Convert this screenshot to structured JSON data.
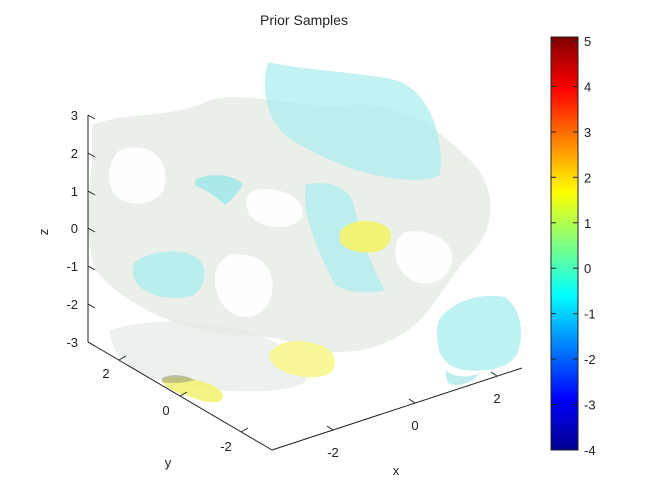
{
  "chart_data": {
    "type": "isosurface-3d",
    "title": "Prior Samples",
    "xlabel": "x",
    "ylabel": "y",
    "zlabel": "z",
    "x_ticks": [
      "-2",
      "0",
      "2"
    ],
    "y_ticks": [
      "2",
      "0",
      "-2"
    ],
    "z_ticks": [
      "3",
      "2",
      "1",
      "0",
      "-1",
      "-2",
      "-3"
    ],
    "xlim": [
      -3,
      3
    ],
    "ylim": [
      -3,
      3
    ],
    "zlim": [
      -3,
      3
    ],
    "colorbar": {
      "colormap": "jet",
      "range": [
        -4,
        5
      ],
      "ticks": [
        "5",
        "4",
        "3",
        "2",
        "1",
        "0",
        "-1",
        "-2",
        "-3",
        "-4"
      ],
      "colors": [
        "#00008f",
        "#0000ff",
        "#0080ff",
        "#00ffff",
        "#80ff80",
        "#ffff00",
        "#ff8000",
        "#ff0000",
        "#800000"
      ]
    },
    "isosurfaces": [
      {
        "level": -1,
        "color": "#a8f0f0",
        "description": "cyan surfaces"
      },
      {
        "level": 0,
        "color": "#e6ede6",
        "description": "light gray-green surfaces"
      },
      {
        "level": 1.5,
        "color": "#f5f57a",
        "description": "yellow surfaces"
      }
    ]
  }
}
